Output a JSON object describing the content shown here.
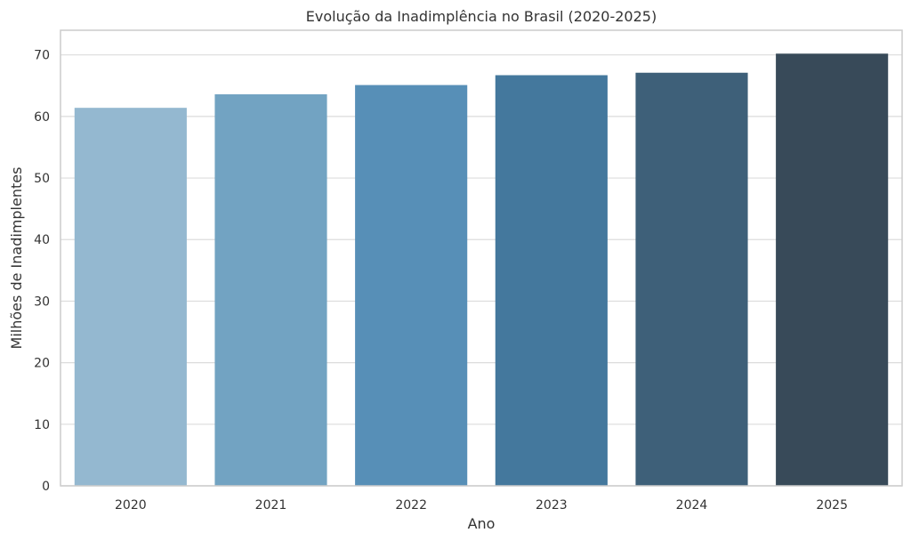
{
  "chart_data": {
    "type": "bar",
    "title": "Evolução da Inadimplência no Brasil (2020-2025)",
    "xlabel": "Ano",
    "ylabel": "Milhões de Inadimplentes",
    "categories": [
      "2020",
      "2021",
      "2022",
      "2023",
      "2024",
      "2025"
    ],
    "values": [
      61.4,
      63.6,
      65.1,
      66.7,
      67.1,
      70.2
    ],
    "ylim": [
      0,
      74
    ],
    "yticks": [
      "0",
      "10",
      "20",
      "30",
      "40",
      "50",
      "60",
      "70"
    ],
    "grid": true,
    "colors": [
      "#94b8d0",
      "#72a3c2",
      "#578fb7",
      "#44789d",
      "#3e6079",
      "#384a59"
    ]
  }
}
